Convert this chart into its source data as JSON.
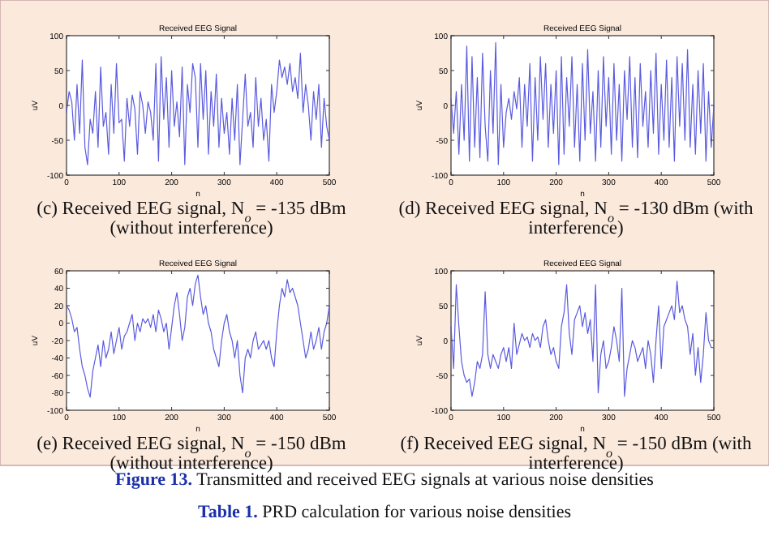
{
  "chart_data": [
    {
      "type": "line",
      "title": "Received EEG Signal",
      "xlabel": "n",
      "ylabel": "uV",
      "xlim": [
        0,
        500
      ],
      "xticks": [
        0,
        100,
        200,
        300,
        400,
        500
      ],
      "ylim": [
        -100,
        100
      ],
      "yticks": [
        -100,
        -50,
        0,
        50,
        100
      ],
      "annotations": [
        "(c) Received EEG signal, N$_{o}$ = -135 dBm (without interference)"
      ],
      "series": [
        {
          "color": "#5a5ae0",
          "x": [
            0,
            5,
            10,
            15,
            20,
            25,
            30,
            35,
            40,
            45,
            50,
            55,
            60,
            65,
            70,
            75,
            80,
            85,
            90,
            95,
            100,
            105,
            110,
            115,
            120,
            125,
            130,
            135,
            140,
            145,
            150,
            155,
            160,
            165,
            170,
            175,
            180,
            185,
            190,
            195,
            200,
            205,
            210,
            215,
            220,
            225,
            230,
            235,
            240,
            245,
            250,
            255,
            260,
            265,
            270,
            275,
            280,
            285,
            290,
            295,
            300,
            305,
            310,
            315,
            320,
            325,
            330,
            335,
            340,
            345,
            350,
            355,
            360,
            365,
            370,
            375,
            380,
            385,
            390,
            395,
            400,
            405,
            410,
            415,
            420,
            425,
            430,
            435,
            440,
            445,
            450,
            455,
            460,
            465,
            470,
            475,
            480,
            485,
            490,
            495,
            500
          ],
          "values": [
            -10,
            20,
            5,
            -50,
            30,
            -40,
            65,
            -60,
            -85,
            -20,
            -40,
            20,
            -60,
            55,
            -30,
            -10,
            -70,
            30,
            -40,
            60,
            -25,
            -20,
            -80,
            10,
            -30,
            15,
            -5,
            -70,
            20,
            0,
            -40,
            5,
            -10,
            -50,
            60,
            -80,
            70,
            -20,
            40,
            -60,
            50,
            -30,
            5,
            -45,
            55,
            -85,
            30,
            -10,
            60,
            40,
            -60,
            60,
            -20,
            50,
            -70,
            20,
            -30,
            45,
            -60,
            10,
            -40,
            -10,
            -70,
            10,
            -50,
            30,
            -85,
            -20,
            45,
            -30,
            -10,
            -60,
            40,
            -30,
            10,
            -50,
            -20,
            -80,
            30,
            -10,
            20,
            65,
            40,
            55,
            30,
            60,
            20,
            40,
            10,
            75,
            -10,
            30,
            0,
            -50,
            20,
            -20,
            30,
            -60,
            10,
            -30,
            -50
          ]
        }
      ]
    },
    {
      "type": "line",
      "title": "Received EEG Signal",
      "xlabel": "n",
      "ylabel": "uV",
      "xlim": [
        0,
        500
      ],
      "xticks": [
        0,
        100,
        200,
        300,
        400,
        500
      ],
      "ylim": [
        -100,
        100
      ],
      "yticks": [
        -100,
        -50,
        0,
        50,
        100
      ],
      "annotations": [
        "(d) Received EEG signal, N$_{o}$ = -130 dBm (with interference)"
      ],
      "series": [
        {
          "color": "#5a5ae0",
          "x": [
            0,
            5,
            10,
            15,
            20,
            25,
            30,
            35,
            40,
            45,
            50,
            55,
            60,
            65,
            70,
            75,
            80,
            85,
            90,
            95,
            100,
            105,
            110,
            115,
            120,
            125,
            130,
            135,
            140,
            145,
            150,
            155,
            160,
            165,
            170,
            175,
            180,
            185,
            190,
            195,
            200,
            205,
            210,
            215,
            220,
            225,
            230,
            235,
            240,
            245,
            250,
            255,
            260,
            265,
            270,
            275,
            280,
            285,
            290,
            295,
            300,
            305,
            310,
            315,
            320,
            325,
            330,
            335,
            340,
            345,
            350,
            355,
            360,
            365,
            370,
            375,
            380,
            385,
            390,
            395,
            400,
            405,
            410,
            415,
            420,
            425,
            430,
            435,
            440,
            445,
            450,
            455,
            460,
            465,
            470,
            475,
            480,
            485,
            490,
            495,
            500
          ],
          "values": [
            10,
            -40,
            20,
            -70,
            30,
            -50,
            85,
            -80,
            70,
            -60,
            40,
            -75,
            75,
            -30,
            -80,
            50,
            -40,
            90,
            -85,
            30,
            -60,
            -10,
            10,
            -20,
            20,
            -5,
            40,
            -60,
            30,
            -30,
            60,
            -80,
            40,
            -50,
            70,
            -20,
            60,
            -60,
            30,
            -40,
            50,
            -85,
            70,
            -70,
            40,
            -30,
            70,
            -60,
            30,
            -80,
            60,
            -50,
            80,
            -40,
            20,
            -80,
            50,
            -60,
            70,
            -30,
            40,
            -70,
            60,
            -50,
            30,
            -80,
            50,
            -20,
            70,
            -60,
            40,
            -75,
            60,
            -30,
            20,
            -60,
            50,
            -40,
            75,
            -70,
            30,
            -50,
            65,
            -60,
            40,
            -80,
            70,
            -30,
            60,
            -50,
            80,
            -60,
            30,
            -70,
            50,
            -40,
            60,
            -80,
            20,
            -60,
            0
          ]
        }
      ]
    },
    {
      "type": "line",
      "title": "Received EEG Signal",
      "xlabel": "n",
      "ylabel": "uV",
      "xlim": [
        0,
        500
      ],
      "xticks": [
        0,
        100,
        200,
        300,
        400,
        500
      ],
      "ylim": [
        -100,
        60
      ],
      "yticks": [
        -100,
        -80,
        -60,
        -40,
        -20,
        0,
        20,
        40,
        60
      ],
      "annotations": [
        "(e) Received EEG signal, N$_{o}$ = -150 dBm (without interference)"
      ],
      "series": [
        {
          "color": "#5a5ae0",
          "x": [
            0,
            5,
            10,
            15,
            20,
            25,
            30,
            35,
            40,
            45,
            50,
            55,
            60,
            65,
            70,
            75,
            80,
            85,
            90,
            95,
            100,
            105,
            110,
            115,
            120,
            125,
            130,
            135,
            140,
            145,
            150,
            155,
            160,
            165,
            170,
            175,
            180,
            185,
            190,
            195,
            200,
            205,
            210,
            215,
            220,
            225,
            230,
            235,
            240,
            245,
            250,
            255,
            260,
            265,
            270,
            275,
            280,
            285,
            290,
            295,
            300,
            305,
            310,
            315,
            320,
            325,
            330,
            335,
            340,
            345,
            350,
            355,
            360,
            365,
            370,
            375,
            380,
            385,
            390,
            395,
            400,
            405,
            410,
            415,
            420,
            425,
            430,
            435,
            440,
            445,
            450,
            455,
            460,
            465,
            470,
            475,
            480,
            485,
            490,
            495,
            500
          ],
          "values": [
            20,
            15,
            5,
            -10,
            -5,
            -30,
            -50,
            -60,
            -75,
            -85,
            -55,
            -40,
            -25,
            -50,
            -20,
            -40,
            -30,
            -10,
            -35,
            -20,
            -5,
            -30,
            -15,
            -10,
            0,
            10,
            -20,
            0,
            -10,
            5,
            0,
            5,
            -5,
            10,
            -10,
            15,
            5,
            -10,
            0,
            -30,
            -5,
            20,
            35,
            10,
            -20,
            -5,
            30,
            40,
            20,
            45,
            55,
            30,
            10,
            20,
            0,
            -10,
            -30,
            -40,
            -50,
            -20,
            0,
            10,
            -10,
            -20,
            -40,
            -20,
            -60,
            -80,
            -40,
            -30,
            -40,
            -20,
            -10,
            -30,
            -25,
            -20,
            -30,
            -20,
            -40,
            -50,
            -10,
            20,
            40,
            30,
            50,
            35,
            40,
            30,
            20,
            0,
            -20,
            -40,
            -30,
            -10,
            -30,
            -20,
            -5,
            -30,
            -10,
            0,
            20
          ]
        }
      ]
    },
    {
      "type": "line",
      "title": "Received EEG Signal",
      "xlabel": "n",
      "ylabel": "uV",
      "xlim": [
        0,
        500
      ],
      "xticks": [
        0,
        100,
        200,
        300,
        400,
        500
      ],
      "ylim": [
        -100,
        100
      ],
      "yticks": [
        -100,
        -50,
        0,
        50,
        100
      ],
      "annotations": [
        "(f) Received EEG signal, N$_{o}$ = -150 dBm (with interference)"
      ],
      "series": [
        {
          "color": "#5a5ae0",
          "x": [
            0,
            5,
            10,
            15,
            20,
            25,
            30,
            35,
            40,
            45,
            50,
            55,
            60,
            65,
            70,
            75,
            80,
            85,
            90,
            95,
            100,
            105,
            110,
            115,
            120,
            125,
            130,
            135,
            140,
            145,
            150,
            155,
            160,
            165,
            170,
            175,
            180,
            185,
            190,
            195,
            200,
            205,
            210,
            215,
            220,
            225,
            230,
            235,
            240,
            245,
            250,
            255,
            260,
            265,
            270,
            275,
            280,
            285,
            290,
            295,
            300,
            305,
            310,
            315,
            320,
            325,
            330,
            335,
            340,
            345,
            350,
            355,
            360,
            365,
            370,
            375,
            380,
            385,
            390,
            395,
            400,
            405,
            410,
            415,
            420,
            425,
            430,
            435,
            440,
            445,
            450,
            455,
            460,
            465,
            470,
            475,
            480,
            485,
            490,
            495,
            500
          ],
          "values": [
            20,
            -40,
            80,
            20,
            -30,
            -50,
            -60,
            -55,
            -80,
            -60,
            -30,
            -40,
            -20,
            70,
            -20,
            -40,
            -20,
            -30,
            -40,
            -20,
            -10,
            -30,
            -10,
            -40,
            25,
            -20,
            -5,
            10,
            0,
            5,
            -10,
            10,
            0,
            5,
            -10,
            20,
            30,
            0,
            -20,
            -10,
            -30,
            -40,
            20,
            40,
            80,
            10,
            -20,
            30,
            40,
            50,
            20,
            40,
            10,
            30,
            -30,
            80,
            -75,
            -20,
            0,
            -40,
            -30,
            -10,
            20,
            0,
            -30,
            75,
            -80,
            -40,
            -20,
            0,
            -10,
            -30,
            -20,
            -10,
            -40,
            0,
            -20,
            -60,
            0,
            50,
            -40,
            20,
            30,
            40,
            50,
            30,
            85,
            40,
            50,
            30,
            20,
            -20,
            10,
            -50,
            -10,
            -60,
            -20,
            40,
            0,
            -10,
            -10
          ]
        }
      ]
    },
    {
      "type": "other",
      "annotations": [
        "Figure 13. Transmitted and received EEG signals at various noise densities",
        "Table 1. PRD calculation for various noise densities"
      ]
    }
  ]
}
